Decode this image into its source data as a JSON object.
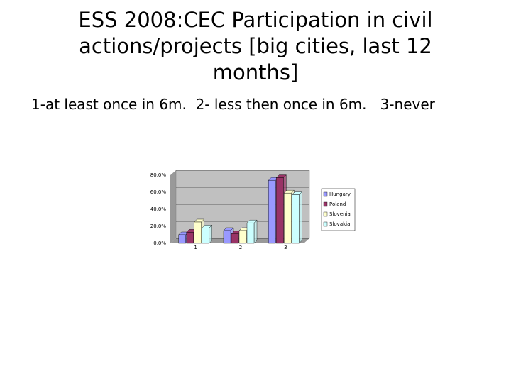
{
  "header": {
    "title": "ESS 2008:CEC Participation in civil actions/projects [big cities, last 12 months]",
    "subtitle": "1-at least once in 6m.  2- less then once in 6m.   3-never"
  },
  "chart_data": {
    "type": "bar",
    "categories": [
      "1",
      "2",
      "3"
    ],
    "series": [
      {
        "name": "Hungary",
        "color": "#9999ff",
        "values": [
          10,
          15,
          74
        ]
      },
      {
        "name": "Poland",
        "color": "#993366",
        "values": [
          13,
          11,
          77
        ]
      },
      {
        "name": "Slovenia",
        "color": "#ffffcc",
        "values": [
          25,
          15,
          59
        ]
      },
      {
        "name": "Slovakia",
        "color": "#ccffff",
        "values": [
          18,
          24,
          57
        ]
      }
    ],
    "ylim": [
      0,
      80
    ],
    "yticks": [
      {
        "value": 0,
        "label": "0,0%"
      },
      {
        "value": 20,
        "label": "20,0%"
      },
      {
        "value": 40,
        "label": "40,0%"
      },
      {
        "value": 60,
        "label": "60,0%"
      },
      {
        "value": 80,
        "label": "80,0%"
      }
    ],
    "grid": true,
    "legend": "right"
  }
}
